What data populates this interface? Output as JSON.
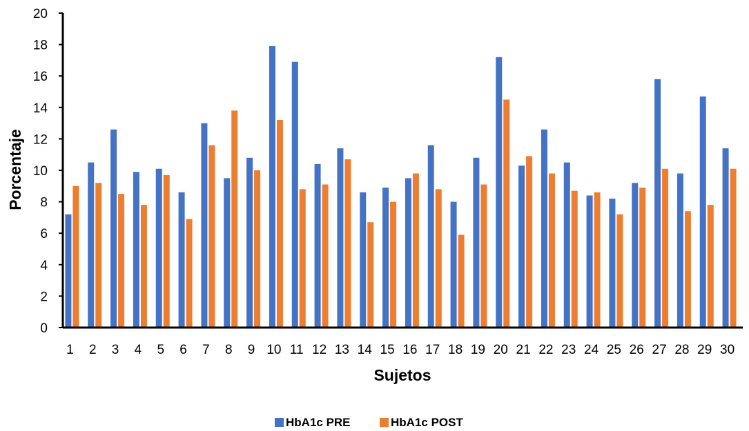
{
  "chart_data": {
    "type": "bar",
    "title": "",
    "xlabel": "Sujetos",
    "ylabel": "Porcentaje",
    "ylim": [
      0,
      20
    ],
    "yticks": [
      0,
      2,
      4,
      6,
      8,
      10,
      12,
      14,
      16,
      18,
      20
    ],
    "grid": false,
    "legend_position": "bottom",
    "categories": [
      "1",
      "2",
      "3",
      "4",
      "5",
      "6",
      "7",
      "8",
      "9",
      "10",
      "11",
      "12",
      "13",
      "14",
      "15",
      "16",
      "17",
      "18",
      "19",
      "20",
      "21",
      "22",
      "23",
      "24",
      "25",
      "26",
      "27",
      "28",
      "29",
      "30"
    ],
    "series": [
      {
        "name": "HbA1c PRE",
        "color": "#4472C4",
        "values": [
          7.2,
          10.5,
          12.6,
          9.9,
          10.1,
          8.6,
          13.0,
          9.5,
          10.8,
          17.9,
          16.9,
          10.4,
          11.4,
          8.6,
          8.9,
          9.5,
          11.6,
          8.0,
          10.8,
          17.2,
          10.3,
          12.6,
          10.5,
          8.4,
          8.2,
          9.2,
          15.8,
          9.8,
          14.7,
          11.4
        ]
      },
      {
        "name": "HbA1c POST",
        "color": "#ED7D31",
        "values": [
          9.0,
          9.2,
          8.5,
          7.8,
          9.7,
          6.9,
          11.6,
          13.8,
          10.0,
          13.2,
          8.8,
          9.1,
          10.7,
          6.7,
          8.0,
          9.8,
          8.8,
          5.9,
          9.1,
          14.5,
          10.9,
          9.8,
          8.7,
          8.6,
          7.2,
          8.9,
          10.1,
          7.4,
          7.8,
          10.1
        ]
      }
    ]
  }
}
